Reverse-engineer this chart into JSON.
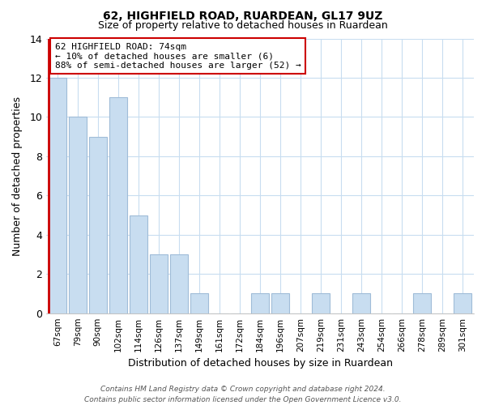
{
  "title": "62, HIGHFIELD ROAD, RUARDEAN, GL17 9UZ",
  "subtitle": "Size of property relative to detached houses in Ruardean",
  "xlabel": "Distribution of detached houses by size in Ruardean",
  "ylabel": "Number of detached properties",
  "bar_labels": [
    "67sqm",
    "79sqm",
    "90sqm",
    "102sqm",
    "114sqm",
    "126sqm",
    "137sqm",
    "149sqm",
    "161sqm",
    "172sqm",
    "184sqm",
    "196sqm",
    "207sqm",
    "219sqm",
    "231sqm",
    "243sqm",
    "254sqm",
    "266sqm",
    "278sqm",
    "289sqm",
    "301sqm"
  ],
  "bar_values": [
    12,
    10,
    9,
    11,
    5,
    3,
    3,
    1,
    0,
    0,
    1,
    1,
    0,
    1,
    0,
    1,
    0,
    0,
    1,
    0,
    1
  ],
  "bar_color": "#c8ddf0",
  "bar_edge_color": "#a0bcd8",
  "highlight_color": "#cc0000",
  "annotation_line1": "62 HIGHFIELD ROAD: 74sqm",
  "annotation_line2": "← 10% of detached houses are smaller (6)",
  "annotation_line3": "88% of semi-detached houses are larger (52) →",
  "annotation_box_color": "#ffffff",
  "annotation_box_edge_color": "#cc0000",
  "ylim": [
    0,
    14
  ],
  "yticks": [
    0,
    2,
    4,
    6,
    8,
    10,
    12,
    14
  ],
  "footer_line1": "Contains HM Land Registry data © Crown copyright and database right 2024.",
  "footer_line2": "Contains public sector information licensed under the Open Government Licence v3.0.",
  "background_color": "#ffffff",
  "grid_color": "#c8ddf0",
  "red_line_bar_index": 0
}
